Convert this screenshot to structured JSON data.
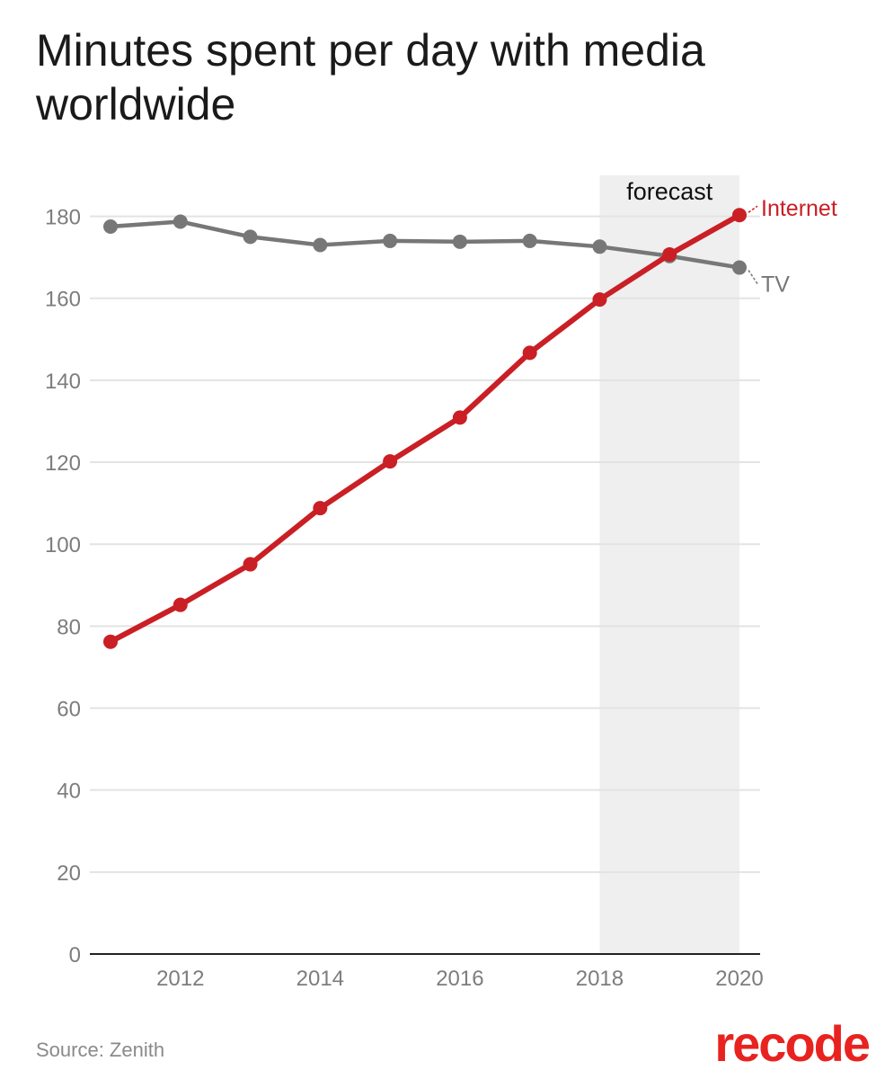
{
  "title": "Minutes spent per day with media worldwide",
  "source": "Source: Zenith",
  "brand": "recode",
  "chart_data": {
    "type": "line",
    "x": [
      2011,
      2012,
      2013,
      2014,
      2015,
      2016,
      2017,
      2018,
      2019,
      2020
    ],
    "series": [
      {
        "name": "TV",
        "color": "#777777",
        "values": [
          177.5,
          178.7,
          175.0,
          173.0,
          174.0,
          173.8,
          174.0,
          172.6,
          170.3,
          167.5
        ]
      },
      {
        "name": "Internet",
        "color": "#c91f25",
        "values": [
          76.2,
          85.2,
          95.1,
          108.8,
          120.2,
          130.9,
          146.7,
          159.7,
          170.7,
          180.3
        ]
      }
    ],
    "ylim": [
      0,
      190
    ],
    "yticks": [
      0,
      20,
      40,
      60,
      80,
      100,
      120,
      140,
      160,
      180
    ],
    "xlim": [
      2011,
      2020.3
    ],
    "xticks": [
      2012,
      2014,
      2016,
      2018,
      2020
    ],
    "forecast": {
      "label": "forecast",
      "from": 2018,
      "to": 2020
    },
    "grid": true
  }
}
